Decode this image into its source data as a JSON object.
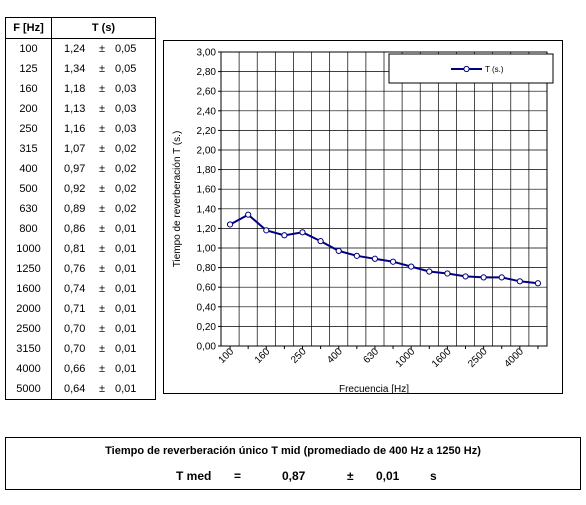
{
  "table": {
    "col_freq": "F [Hz]",
    "col_t": "T (s)",
    "pm": "±",
    "rows": [
      {
        "f": "100",
        "t": "1,24",
        "u": "0,05"
      },
      {
        "f": "125",
        "t": "1,34",
        "u": "0,05"
      },
      {
        "f": "160",
        "t": "1,18",
        "u": "0,03"
      },
      {
        "f": "200",
        "t": "1,13",
        "u": "0,03"
      },
      {
        "f": "250",
        "t": "1,16",
        "u": "0,03"
      },
      {
        "f": "315",
        "t": "1,07",
        "u": "0,02"
      },
      {
        "f": "400",
        "t": "0,97",
        "u": "0,02"
      },
      {
        "f": "500",
        "t": "0,92",
        "u": "0,02"
      },
      {
        "f": "630",
        "t": "0,89",
        "u": "0,02"
      },
      {
        "f": "800",
        "t": "0,86",
        "u": "0,01"
      },
      {
        "f": "1000",
        "t": "0,81",
        "u": "0,01"
      },
      {
        "f": "1250",
        "t": "0,76",
        "u": "0,01"
      },
      {
        "f": "1600",
        "t": "0,74",
        "u": "0,01"
      },
      {
        "f": "2000",
        "t": "0,71",
        "u": "0,01"
      },
      {
        "f": "2500",
        "t": "0,70",
        "u": "0,01"
      },
      {
        "f": "3150",
        "t": "0,70",
        "u": "0,01"
      },
      {
        "f": "4000",
        "t": "0,66",
        "u": "0,01"
      },
      {
        "f": "5000",
        "t": "0,64",
        "u": "0,01"
      }
    ]
  },
  "chart_data": {
    "type": "line",
    "title": "",
    "xlabel": "Frecuencia [Hz]",
    "ylabel": "Tiempo de reverberación T (s.)",
    "legend_position": "top-right",
    "grid": true,
    "ylim": [
      0.0,
      3.0
    ],
    "y_tick_labels": [
      "0,00",
      "0,20",
      "0,40",
      "0,60",
      "0,80",
      "1,00",
      "1,20",
      "1,40",
      "1,60",
      "1,80",
      "2,00",
      "2,20",
      "2,40",
      "2,60",
      "2,80",
      "3,00"
    ],
    "categories": [
      "100",
      "125",
      "160",
      "200",
      "250",
      "315",
      "400",
      "500",
      "630",
      "800",
      "1000",
      "1250",
      "1600",
      "2000",
      "2500",
      "3150",
      "4000",
      "5000"
    ],
    "x_tick_labels": [
      "100",
      "160",
      "250",
      "400",
      "630",
      "1000",
      "1600",
      "2500",
      "4000"
    ],
    "series": [
      {
        "name": "T (s.)",
        "color": "#000080",
        "values": [
          1.24,
          1.34,
          1.18,
          1.13,
          1.16,
          1.07,
          0.97,
          0.92,
          0.89,
          0.86,
          0.81,
          0.76,
          0.74,
          0.71,
          0.7,
          0.7,
          0.66,
          0.64
        ]
      }
    ]
  },
  "summary": {
    "title": "Tiempo de reverberación único T mid (promediado de 400 Hz a 1250 Hz)",
    "label": "T med",
    "equals": "=",
    "value": "0,87",
    "pm": "±",
    "uncertainty": "0,01",
    "unit": "s"
  }
}
